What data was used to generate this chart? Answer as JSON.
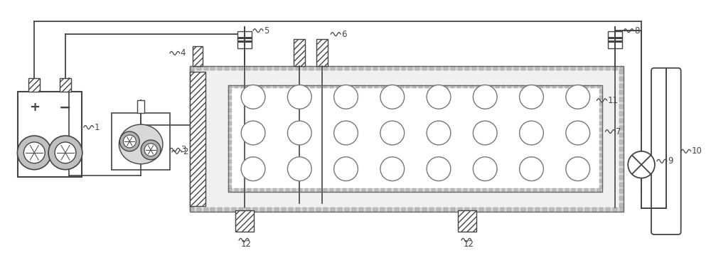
{
  "bg_color": "#ffffff",
  "line_color": "#444444",
  "fig_width": 10.0,
  "fig_height": 3.87,
  "dpi": 100
}
